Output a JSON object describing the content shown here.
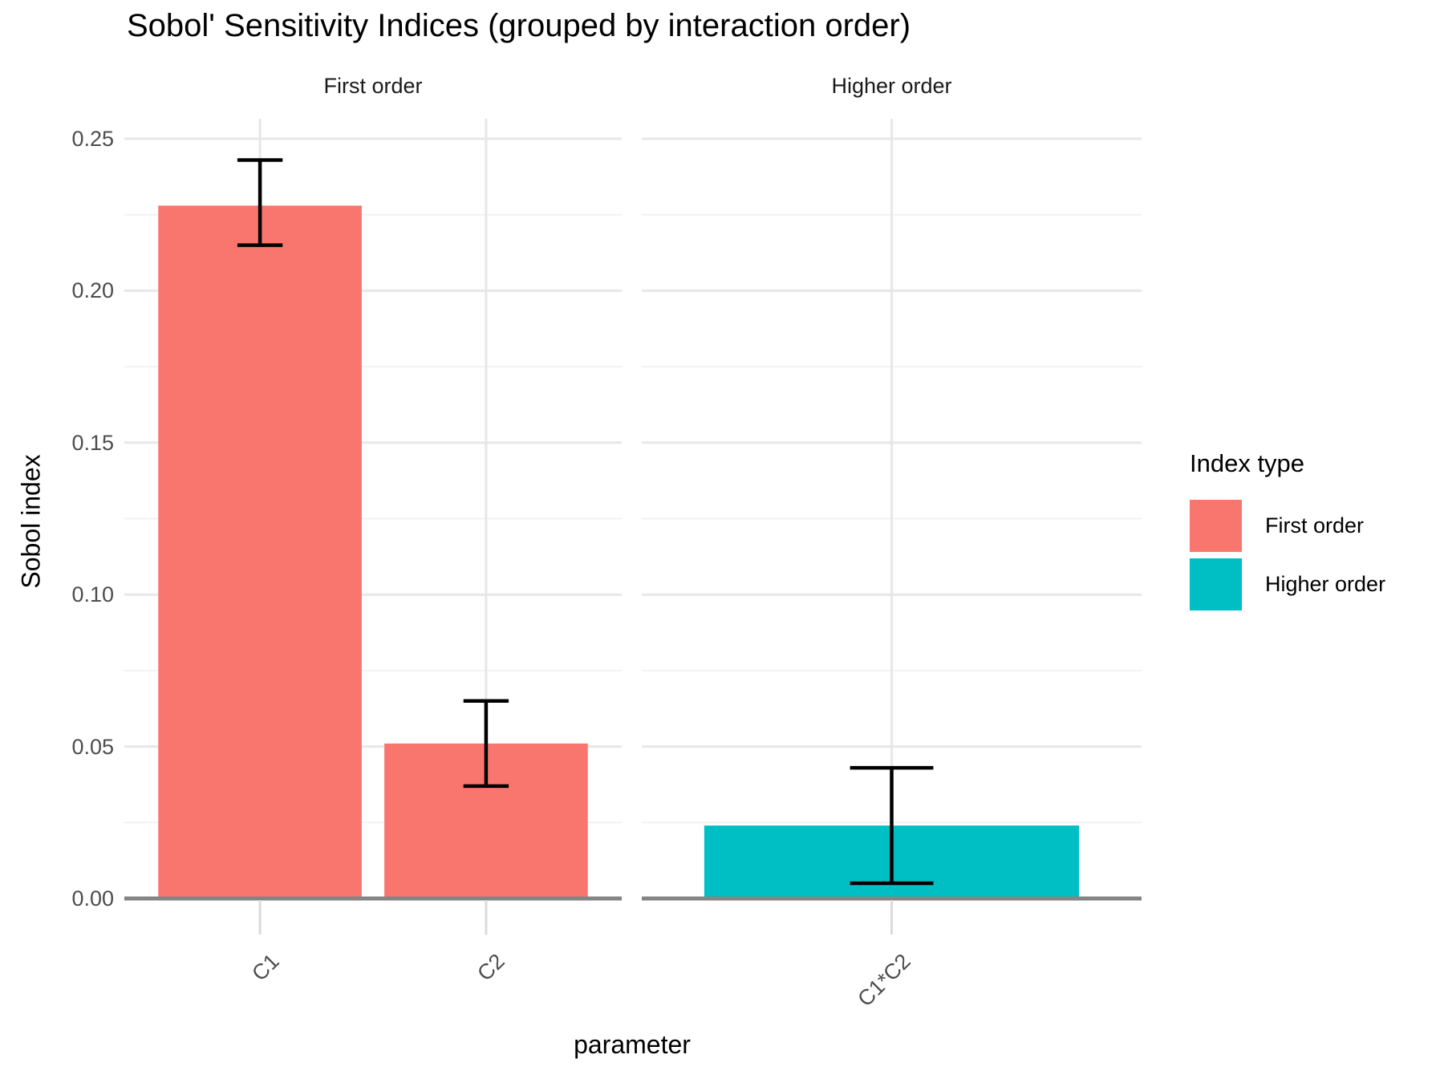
{
  "chart_data": {
    "type": "bar",
    "title": "Sobol' Sensitivity Indices (grouped by interaction order)",
    "xlabel": "parameter",
    "ylabel": "Sobol index",
    "ylim": [
      0,
      0.2566
    ],
    "yticks": [
      0.0,
      0.05,
      0.1,
      0.15,
      0.2,
      0.25
    ],
    "ytick_labels": [
      "0.00",
      "0.05",
      "0.10",
      "0.15",
      "0.20",
      "0.25"
    ],
    "grid": "on",
    "legend_position": "right",
    "facets": [
      {
        "label": "First order",
        "color_key": "first_order",
        "categories": [
          "C1",
          "C2"
        ],
        "values": [
          0.228,
          0.051
        ],
        "error_low": [
          0.215,
          0.037
        ],
        "error_high": [
          0.243,
          0.065
        ]
      },
      {
        "label": "Higher order",
        "color_key": "higher_order",
        "categories": [
          "C1*C2"
        ],
        "values": [
          0.024
        ],
        "error_low": [
          0.005
        ],
        "error_high": [
          0.043
        ]
      }
    ],
    "legend": {
      "title": "Index type",
      "entries": [
        {
          "label": "First order",
          "color": "#F8766D"
        },
        {
          "label": "Higher order",
          "color": "#00BFC4"
        }
      ]
    },
    "colors": {
      "first_order": "#F8766D",
      "higher_order": "#00BFC4",
      "grid_major": "#E7E7E7",
      "grid_minor": "#F2F2F2",
      "axis_line": "#858585",
      "axis_tick": "#DBDBDB",
      "tick_text": "#4d4d4d",
      "errorbar": "#000000"
    }
  }
}
